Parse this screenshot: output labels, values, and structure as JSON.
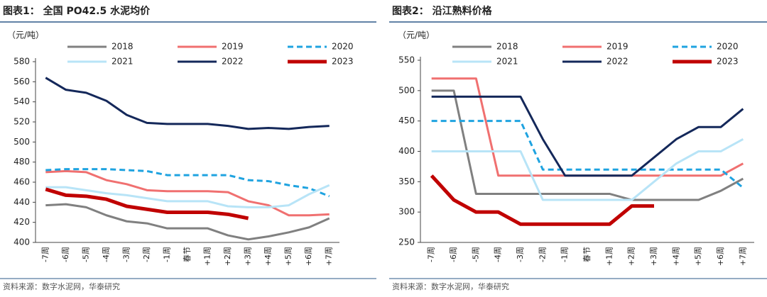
{
  "chart_data": [
    {
      "type": "line",
      "title": "图表1： 全国 PO42.5 水泥均价",
      "unit_label": "（元/吨）",
      "source": "资料来源：数字水泥网，华泰研究",
      "categories": [
        "-7周",
        "-6周",
        "-5周",
        "-4周",
        "-3周",
        "-2周",
        "-1周",
        "春节",
        "+1周",
        "+2周",
        "+3周",
        "+4周",
        "+5周",
        "+6周",
        "+7周"
      ],
      "ylim": [
        400,
        580
      ],
      "yticks": [
        400,
        420,
        440,
        460,
        480,
        500,
        520,
        540,
        560,
        580
      ],
      "series": [
        {
          "name": "2018",
          "color": "#808080",
          "width": 3,
          "dashed": false,
          "values": [
            437,
            438,
            435,
            427,
            421,
            419,
            414,
            414,
            414,
            407,
            403,
            406,
            410,
            415,
            424
          ]
        },
        {
          "name": "2019",
          "color": "#f07070",
          "width": 3,
          "dashed": false,
          "values": [
            470,
            471,
            470,
            462,
            458,
            452,
            451,
            451,
            451,
            450,
            441,
            437,
            427,
            427,
            428
          ]
        },
        {
          "name": "2020",
          "color": "#1fa3e0",
          "width": 3,
          "dashed": true,
          "values": [
            472,
            473,
            473,
            473,
            472,
            471,
            467,
            467,
            467,
            467,
            462,
            461,
            457,
            454,
            446
          ]
        },
        {
          "name": "2021",
          "color": "#b8e4f7",
          "width": 3,
          "dashed": false,
          "values": [
            455,
            455,
            452,
            449,
            447,
            444,
            441,
            441,
            441,
            436,
            435,
            435,
            437,
            448,
            457
          ]
        },
        {
          "name": "2022",
          "color": "#14285a",
          "width": 3,
          "dashed": false,
          "values": [
            564,
            552,
            549,
            541,
            527,
            519,
            518,
            518,
            518,
            516,
            513,
            514,
            513,
            515,
            516
          ]
        },
        {
          "name": "2023",
          "color": "#c00000",
          "width": 5,
          "dashed": false,
          "values": [
            453,
            447,
            446,
            443,
            436,
            433,
            430,
            430,
            430,
            428,
            424,
            null,
            null,
            null,
            null
          ]
        }
      ]
    },
    {
      "type": "line",
      "title": "图表2： 沿江熟料价格",
      "unit_label": "（元/吨）",
      "source": "资料来源：数字水泥网，华泰研究",
      "categories": [
        "-7周",
        "-6周",
        "-5周",
        "-4周",
        "-3周",
        "-2周",
        "-1周",
        "春节",
        "+1周",
        "+2周",
        "+3周",
        "+4周",
        "+5周",
        "+6周",
        "+7周"
      ],
      "ylim": [
        250,
        550
      ],
      "yticks": [
        250,
        300,
        350,
        400,
        450,
        500,
        550
      ],
      "series": [
        {
          "name": "2018",
          "color": "#808080",
          "width": 3,
          "dashed": false,
          "values": [
            500,
            500,
            330,
            330,
            330,
            330,
            330,
            330,
            330,
            320,
            320,
            320,
            320,
            335,
            355
          ]
        },
        {
          "name": "2019",
          "color": "#f07070",
          "width": 3,
          "dashed": false,
          "values": [
            520,
            520,
            520,
            360,
            360,
            360,
            360,
            360,
            360,
            360,
            360,
            360,
            360,
            360,
            380
          ]
        },
        {
          "name": "2020",
          "color": "#1fa3e0",
          "width": 3,
          "dashed": true,
          "values": [
            450,
            450,
            450,
            450,
            450,
            370,
            370,
            370,
            370,
            370,
            370,
            370,
            370,
            370,
            340
          ]
        },
        {
          "name": "2021",
          "color": "#b8e4f7",
          "width": 3,
          "dashed": false,
          "values": [
            400,
            400,
            400,
            400,
            400,
            320,
            320,
            320,
            320,
            320,
            350,
            380,
            400,
            400,
            420
          ]
        },
        {
          "name": "2022",
          "color": "#14285a",
          "width": 3,
          "dashed": false,
          "values": [
            490,
            490,
            490,
            490,
            490,
            420,
            360,
            360,
            360,
            360,
            390,
            420,
            440,
            440,
            470
          ]
        },
        {
          "name": "2023",
          "color": "#c00000",
          "width": 5,
          "dashed": false,
          "values": [
            360,
            320,
            300,
            300,
            280,
            280,
            280,
            280,
            280,
            310,
            310,
            null,
            null,
            null,
            null
          ]
        }
      ]
    }
  ]
}
